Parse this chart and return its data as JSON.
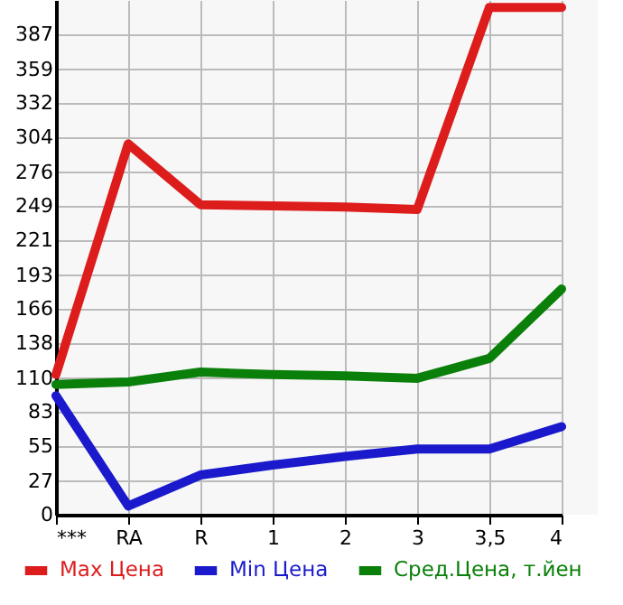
{
  "chart_data": {
    "type": "line",
    "categories": [
      "***",
      "RA",
      "R",
      "1",
      "2",
      "3",
      "3,5",
      "4"
    ],
    "series": [
      {
        "name": "Max Цена",
        "color": "#dd1c1c",
        "values": [
          113,
          299,
          250,
          249,
          248,
          246,
          409,
          409
        ]
      },
      {
        "name": "Min Цена",
        "color": "#1a1acc",
        "values": [
          96,
          7,
          32,
          40,
          47,
          53,
          53,
          71
        ]
      },
      {
        "name": "Сред.Цена, т.йен",
        "color": "#0a800a",
        "values": [
          105,
          107,
          115,
          113,
          112,
          110,
          126,
          182
        ]
      }
    ],
    "ylim": [
      0,
      415
    ],
    "yticks": [
      0,
      27,
      55,
      83,
      110,
      138,
      166,
      193,
      221,
      249,
      276,
      304,
      332,
      359,
      387
    ],
    "grid": true,
    "legend": "bottom",
    "marker": "none",
    "line_style": "solid"
  }
}
